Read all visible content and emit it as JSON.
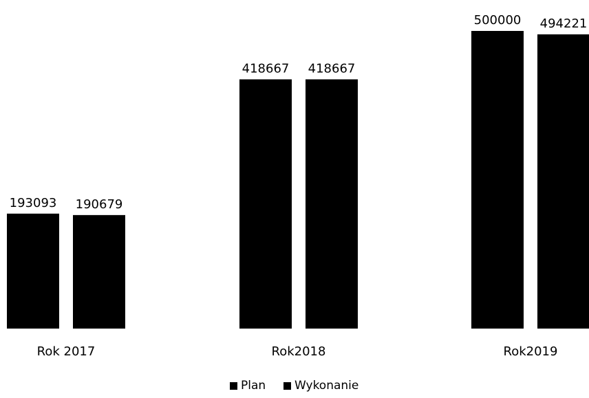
{
  "chart_data": {
    "type": "bar",
    "categories": [
      "Rok 2017",
      "Rok2018",
      "Rok2019"
    ],
    "series": [
      {
        "name": "Plan",
        "values": [
          193093,
          418667,
          500000
        ]
      },
      {
        "name": "Wykonanie",
        "values": [
          190679,
          418667,
          494221
        ]
      }
    ],
    "data_labels": [
      [
        "193093",
        "418667",
        "500000"
      ],
      [
        "190679",
        "418667",
        "494221"
      ]
    ],
    "ylim": [
      0,
      500000
    ],
    "grid": false,
    "legend_position": "bottom-center",
    "colors": [
      "#000000",
      "#000000"
    ]
  }
}
